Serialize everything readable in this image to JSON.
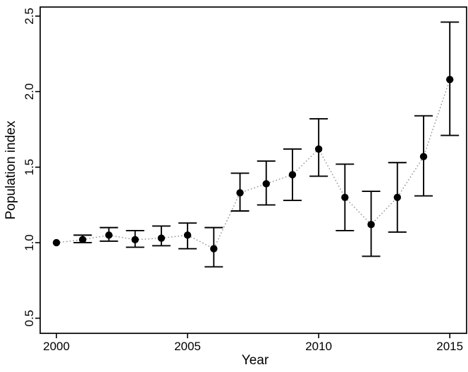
{
  "figure": {
    "background_color": "#ffffff",
    "colors": {
      "axis": "#000000",
      "marker": "#000000",
      "error_bar": "#000000",
      "connector_line": "#8f8f8f"
    }
  },
  "chart_data": {
    "type": "scatter",
    "style": "points with error bars connected by dotted line",
    "title": "",
    "xlabel": "Year",
    "ylabel": "Population index",
    "x": [
      2000,
      2001,
      2002,
      2003,
      2004,
      2005,
      2006,
      2007,
      2008,
      2009,
      2010,
      2011,
      2012,
      2013,
      2014,
      2015
    ],
    "series": [
      {
        "name": "Population index",
        "values": [
          1.0,
          1.02,
          1.05,
          1.02,
          1.03,
          1.05,
          0.96,
          1.33,
          1.39,
          1.45,
          1.62,
          1.3,
          1.12,
          1.3,
          1.57,
          2.08
        ],
        "ci_low": [
          null,
          1.0,
          1.01,
          0.97,
          0.98,
          0.96,
          0.84,
          1.21,
          1.25,
          1.28,
          1.44,
          1.08,
          0.91,
          1.07,
          1.31,
          1.71
        ],
        "ci_high": [
          null,
          1.05,
          1.1,
          1.08,
          1.11,
          1.13,
          1.1,
          1.46,
          1.54,
          1.62,
          1.82,
          1.52,
          1.34,
          1.53,
          1.84,
          2.46
        ]
      }
    ],
    "xticks": [
      2000,
      2005,
      2010,
      2015
    ],
    "yticks": [
      0.5,
      1.0,
      1.5,
      2.0,
      2.5
    ],
    "xlim": [
      1999.38,
      2015.64
    ],
    "ylim": [
      0.4,
      2.56
    ],
    "grid": false,
    "legend": false,
    "marker": "filled-circle",
    "line_style": "dotted"
  }
}
